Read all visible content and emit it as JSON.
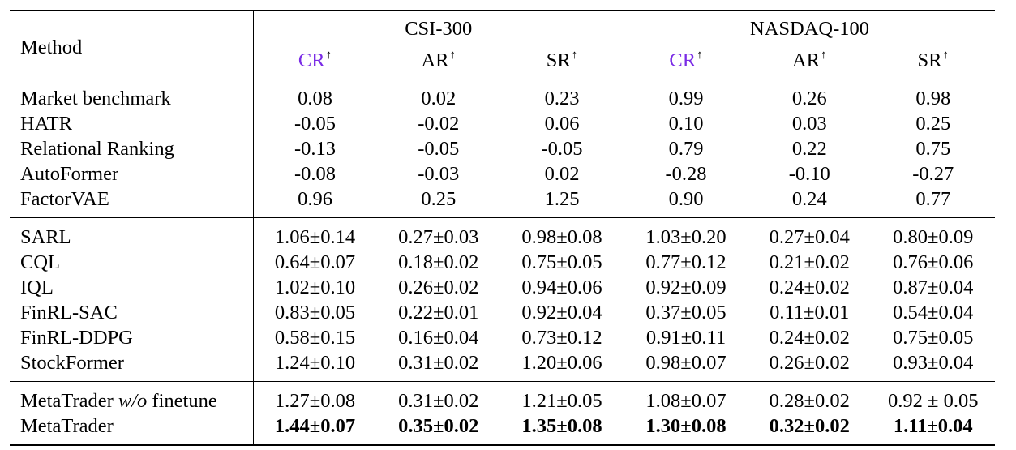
{
  "table": {
    "method_header": "Method",
    "groups": [
      "CSI-300",
      "NASDAQ-100"
    ],
    "metrics": [
      {
        "label": "CR",
        "arrow": "↑",
        "highlight_color": "#7a2be6"
      },
      {
        "label": "AR",
        "arrow": "↑"
      },
      {
        "label": "SR",
        "arrow": "↑"
      }
    ],
    "sections": [
      {
        "rows": [
          {
            "method": "Market benchmark",
            "values": [
              "0.08",
              "0.02",
              "0.23",
              "0.99",
              "0.26",
              "0.98"
            ]
          },
          {
            "method": "HATR",
            "values": [
              "-0.05",
              "-0.02",
              "0.06",
              "0.10",
              "0.03",
              "0.25"
            ]
          },
          {
            "method": "Relational Ranking",
            "values": [
              "-0.13",
              "-0.05",
              "-0.05",
              "0.79",
              "0.22",
              "0.75"
            ]
          },
          {
            "method": "AutoFormer",
            "values": [
              "-0.08",
              "-0.03",
              "0.02",
              "-0.28",
              "-0.10",
              "-0.27"
            ]
          },
          {
            "method": "FactorVAE",
            "values": [
              "0.96",
              "0.25",
              "1.25",
              "0.90",
              "0.24",
              "0.77"
            ]
          }
        ]
      },
      {
        "rows": [
          {
            "method": "SARL",
            "values": [
              "1.06±0.14",
              "0.27±0.03",
              "0.98±0.08",
              "1.03±0.20",
              "0.27±0.04",
              "0.80±0.09"
            ]
          },
          {
            "method": "CQL",
            "values": [
              "0.64±0.07",
              "0.18±0.02",
              "0.75±0.05",
              "0.77±0.12",
              "0.21±0.02",
              "0.76±0.06"
            ]
          },
          {
            "method": "IQL",
            "values": [
              "1.02±0.10",
              "0.26±0.02",
              "0.94±0.06",
              "0.92±0.09",
              "0.24±0.02",
              "0.87±0.04"
            ]
          },
          {
            "method": "FinRL-SAC",
            "values": [
              "0.83±0.05",
              "0.22±0.01",
              "0.92±0.04",
              "0.37±0.05",
              "0.11±0.01",
              "0.54±0.04"
            ]
          },
          {
            "method": "FinRL-DDPG",
            "values": [
              "0.58±0.15",
              "0.16±0.04",
              "0.73±0.12",
              "0.91±0.11",
              "0.24±0.02",
              "0.75±0.05"
            ]
          },
          {
            "method": "StockFormer",
            "values": [
              "1.24±0.10",
              "0.31±0.02",
              "1.20±0.06",
              "0.98±0.07",
              "0.26±0.02",
              "0.93±0.04"
            ]
          }
        ]
      },
      {
        "rows": [
          {
            "method_prefix": "MetaTrader ",
            "method_italic": "w/o",
            "method_suffix": " finetune",
            "values": [
              "1.27±0.08",
              "0.31±0.02",
              "1.21±0.05",
              "1.08±0.07",
              "0.28±0.02",
              "0.92 ± 0.05"
            ]
          },
          {
            "method": "MetaTrader",
            "bold": true,
            "values": [
              "1.44±0.07",
              "0.35±0.02",
              "1.35±0.08",
              "1.30±0.08",
              "0.32±0.02",
              "1.11±0.04"
            ]
          }
        ]
      }
    ]
  }
}
